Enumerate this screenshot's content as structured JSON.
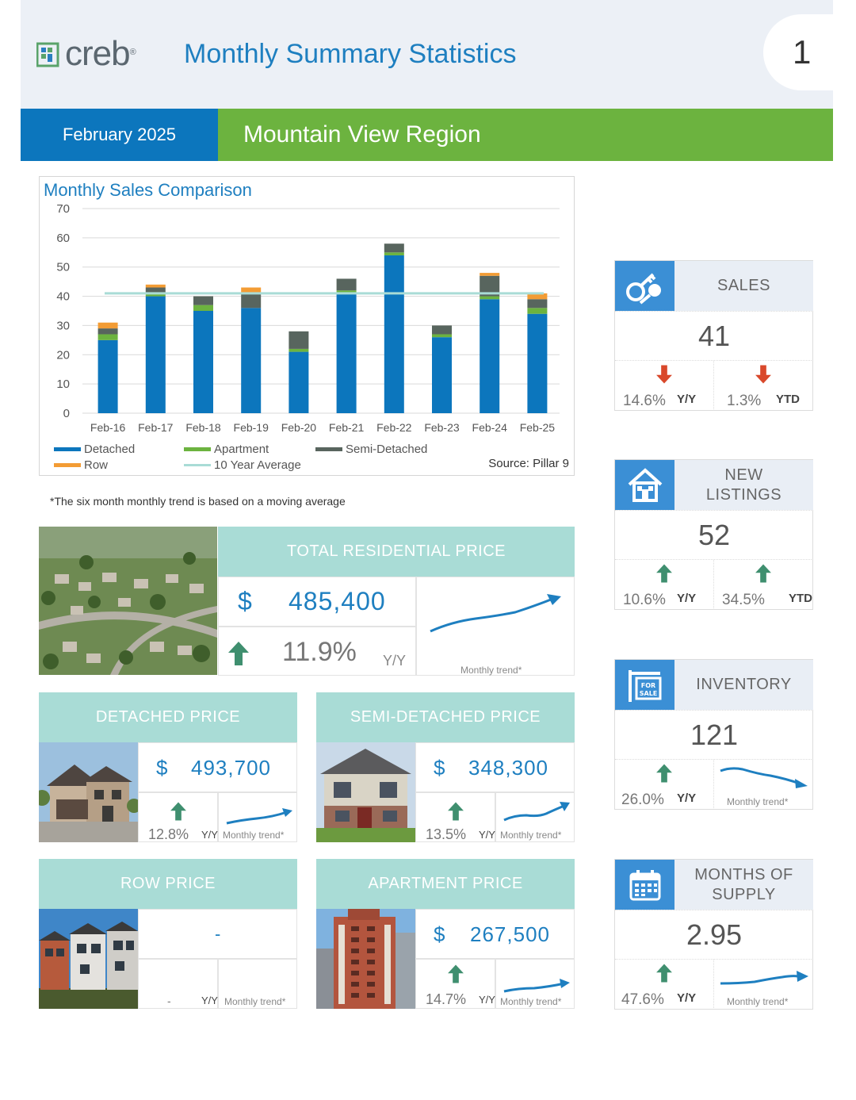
{
  "header": {
    "logo_text": "creb",
    "logo_reg": "®",
    "title": "Monthly Summary Statistics",
    "page_number": "1"
  },
  "band": {
    "period": "February 2025",
    "region": "Mountain View Region"
  },
  "chart_data": {
    "type": "bar",
    "title": "Monthly Sales Comparison",
    "categories": [
      "Feb-16",
      "Feb-17",
      "Feb-18",
      "Feb-19",
      "Feb-20",
      "Feb-21",
      "Feb-22",
      "Feb-23",
      "Feb-24",
      "Feb-25"
    ],
    "series": [
      {
        "name": "Detached",
        "color": "#0c76bd",
        "values": [
          25,
          40,
          35,
          36,
          21,
          41,
          54,
          26,
          39,
          34
        ]
      },
      {
        "name": "Apartment",
        "color": "#6cb33f",
        "values": [
          2,
          1,
          2,
          0,
          1,
          1,
          1,
          1,
          1,
          2
        ]
      },
      {
        "name": "Semi-Detached",
        "color": "#58655e",
        "values": [
          2,
          2,
          3,
          5,
          6,
          4,
          3,
          3,
          7,
          3
        ]
      },
      {
        "name": "Row",
        "color": "#f39c34",
        "values": [
          2,
          1,
          0,
          2,
          0,
          0,
          0,
          0,
          1,
          2
        ]
      }
    ],
    "line": {
      "name": "10 Year Average",
      "color": "#a9dcd6",
      "value": 41
    },
    "yticks": [
      "70",
      "60",
      "50",
      "40",
      "30",
      "20",
      "10",
      "0"
    ],
    "ylim": [
      0,
      70
    ],
    "grid": true,
    "legend_position": "bottom-left",
    "source": "Source: Pillar 9"
  },
  "footnote": "*The six month monthly trend is based on a moving average",
  "total": {
    "heading": "TOTAL RESIDENTIAL PRICE",
    "dollar": "$",
    "price": "485,400",
    "pct": "11.9%",
    "yy": "Y/Y",
    "trend_label": "Monthly trend*"
  },
  "detached": {
    "heading": "DETACHED PRICE",
    "dollar": "$",
    "price": "493,700",
    "pct": "12.8%",
    "yy": "Y/Y",
    "trend_label": "Monthly trend*"
  },
  "semi": {
    "heading": "SEMI-DETACHED PRICE",
    "dollar": "$",
    "price": "348,300",
    "pct": "13.5%",
    "yy": "Y/Y",
    "trend_label": "Monthly trend*"
  },
  "row": {
    "heading": "ROW PRICE",
    "price": "-",
    "pct": "-",
    "yy": "Y/Y",
    "trend_label": "Monthly trend*"
  },
  "apartment": {
    "heading": "APARTMENT PRICE",
    "dollar": "$",
    "price": "267,500",
    "pct": "14.7%",
    "yy": "Y/Y",
    "trend_label": "Monthly trend*"
  },
  "stats": {
    "sales": {
      "label": "SALES",
      "value": "41",
      "left_pct": "14.6%",
      "left_tag": "Y/Y",
      "right_pct": "1.3%",
      "right_tag": "YTD",
      "icon": "keys-icon"
    },
    "new_listings": {
      "label_1": "NEW",
      "label_2": "LISTINGS",
      "value": "52",
      "left_pct": "10.6%",
      "left_tag": "Y/Y",
      "right_pct": "34.5%",
      "right_tag": "YTD",
      "icon": "house-icon"
    },
    "inventory": {
      "label": "INVENTORY",
      "value": "121",
      "left_pct": "26.0%",
      "left_tag": "Y/Y",
      "trend_label": "Monthly trend*",
      "icon": "for-sale-sign-icon",
      "sign_text_1": "FOR",
      "sign_text_2": "SALE"
    },
    "months_supply": {
      "label_1": "MONTHS OF",
      "label_2": "SUPPLY",
      "value": "2.95",
      "left_pct": "47.6%",
      "left_tag": "Y/Y",
      "trend_label": "Monthly trend*",
      "icon": "calendar-icon"
    }
  },
  "colors": {
    "blue": "#0c76bd",
    "green": "#6cb33f",
    "teal": "#a9dcd6",
    "arrow_up": "#3f8f6f",
    "arrow_down": "#d9482b"
  }
}
